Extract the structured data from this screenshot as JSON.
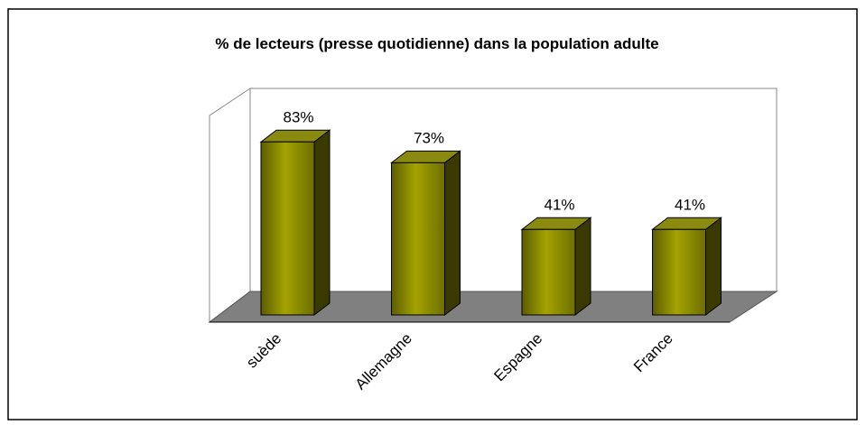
{
  "chart_data": {
    "type": "bar3d",
    "title": "% de lecteurs (presse quotidienne) dans la population adulte",
    "categories": [
      "suède",
      "Allemagne",
      "Espagne",
      "France"
    ],
    "values": [
      83,
      73,
      41,
      41
    ],
    "value_labels": [
      "83%",
      "73%",
      "41%",
      "41%"
    ],
    "color": "#8c8c00",
    "ylim": [
      0,
      100
    ]
  }
}
